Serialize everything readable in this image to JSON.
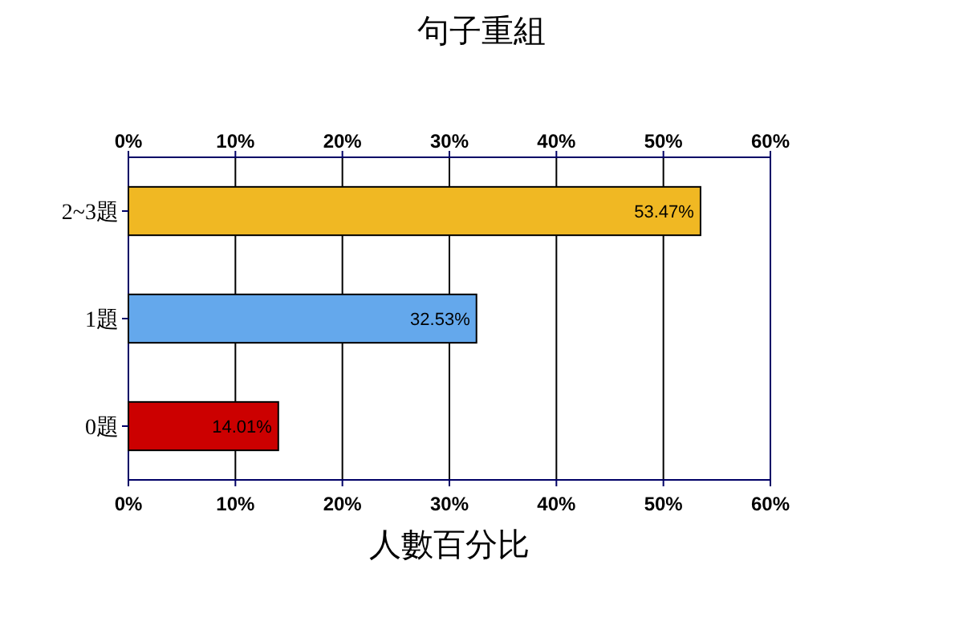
{
  "chart_data": {
    "type": "bar",
    "orientation": "horizontal",
    "title": "句子重組",
    "xlabel": "人數百分比",
    "categories": [
      "2~3題",
      "1題",
      "0題"
    ],
    "values": [
      53.47,
      32.53,
      14.01
    ],
    "colors": [
      "#f0b823",
      "#64a8ec",
      "#cc0000"
    ],
    "value_labels": [
      "53.47%",
      "32.53%",
      "14.01%"
    ],
    "xlim": [
      0,
      60
    ],
    "xticks": [
      {
        "value": 0,
        "label": "0%"
      },
      {
        "value": 10,
        "label": "10%"
      },
      {
        "value": 20,
        "label": "20%"
      },
      {
        "value": 30,
        "label": "30%"
      },
      {
        "value": 40,
        "label": "40%"
      },
      {
        "value": 50,
        "label": "50%"
      },
      {
        "value": 60,
        "label": "60%"
      }
    ],
    "x2lim": [
      0,
      60
    ],
    "x2ticks": [
      {
        "value": 0,
        "label": "0%"
      },
      {
        "value": 10,
        "label": "10%"
      },
      {
        "value": 20,
        "label": "20%"
      },
      {
        "value": 30,
        "label": "30%"
      },
      {
        "value": 40,
        "label": "40%"
      },
      {
        "value": 50,
        "label": "50%"
      },
      {
        "value": 60,
        "label": "60%"
      }
    ],
    "grid": "x"
  }
}
